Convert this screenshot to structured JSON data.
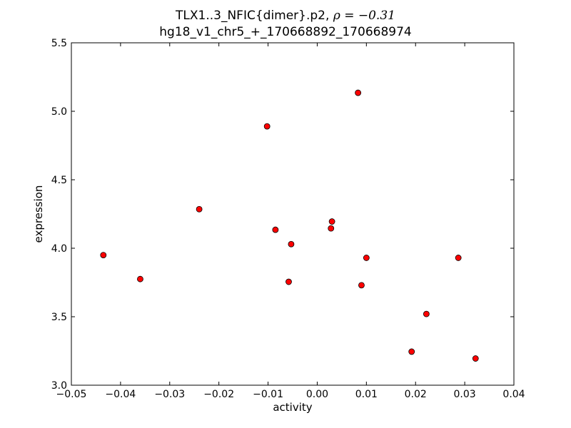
{
  "chart_data": {
    "type": "scatter",
    "title": "TLX1..3_NFIC{dimer}.p2,",
    "title_math": "ρ = −0.31",
    "subtitle": "hg18_v1_chr5_+_170668892_170668974",
    "xlabel": "activity",
    "ylabel": "expression",
    "xlim": [
      -0.05,
      0.04
    ],
    "ylim": [
      3.0,
      5.5
    ],
    "xticks": [
      -0.05,
      -0.04,
      -0.03,
      -0.02,
      -0.01,
      0.0,
      0.01,
      0.02,
      0.03,
      0.04
    ],
    "xtick_labels": [
      "−0.05",
      "−0.04",
      "−0.03",
      "−0.02",
      "−0.01",
      "0.00",
      "0.01",
      "0.02",
      "0.03",
      "0.04"
    ],
    "yticks": [
      3.0,
      3.5,
      4.0,
      4.5,
      5.0,
      5.5
    ],
    "ytick_labels": [
      "3.0",
      "3.5",
      "4.0",
      "4.5",
      "5.0",
      "5.5"
    ],
    "grid": false,
    "marker_color": "#ff0000",
    "marker_edge_color": "#000000",
    "points": [
      {
        "x": -0.0435,
        "y": 3.95
      },
      {
        "x": -0.036,
        "y": 3.775
      },
      {
        "x": -0.024,
        "y": 4.285
      },
      {
        "x": -0.0102,
        "y": 4.89
      },
      {
        "x": -0.0085,
        "y": 4.135
      },
      {
        "x": -0.0058,
        "y": 3.755
      },
      {
        "x": -0.0053,
        "y": 4.03
      },
      {
        "x": 0.0028,
        "y": 4.145
      },
      {
        "x": 0.003,
        "y": 4.195
      },
      {
        "x": 0.0083,
        "y": 5.135
      },
      {
        "x": 0.009,
        "y": 3.73
      },
      {
        "x": 0.01,
        "y": 3.93
      },
      {
        "x": 0.0192,
        "y": 3.245
      },
      {
        "x": 0.0222,
        "y": 3.52
      },
      {
        "x": 0.0287,
        "y": 3.93
      },
      {
        "x": 0.0322,
        "y": 3.195
      }
    ]
  }
}
